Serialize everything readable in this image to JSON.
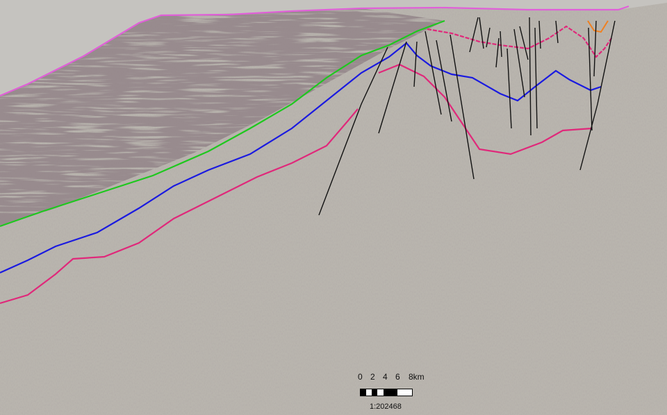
{
  "section": {
    "background_color": "#b9b5ae",
    "horizons": [
      {
        "name": "seafloor",
        "color": "#e060d8"
      },
      {
        "name": "green-horizon",
        "color": "#1ec81e"
      },
      {
        "name": "blue-horizon",
        "color": "#1a1ae0"
      },
      {
        "name": "magenta-horizon",
        "color": "#e0287a"
      },
      {
        "name": "orange-horizon",
        "color": "#f08020"
      },
      {
        "name": "faults",
        "color": "#111111"
      }
    ]
  },
  "scale_bar": {
    "ticks": [
      "0",
      "2",
      "4",
      "6",
      "8km"
    ],
    "ratio": "1:202468"
  }
}
